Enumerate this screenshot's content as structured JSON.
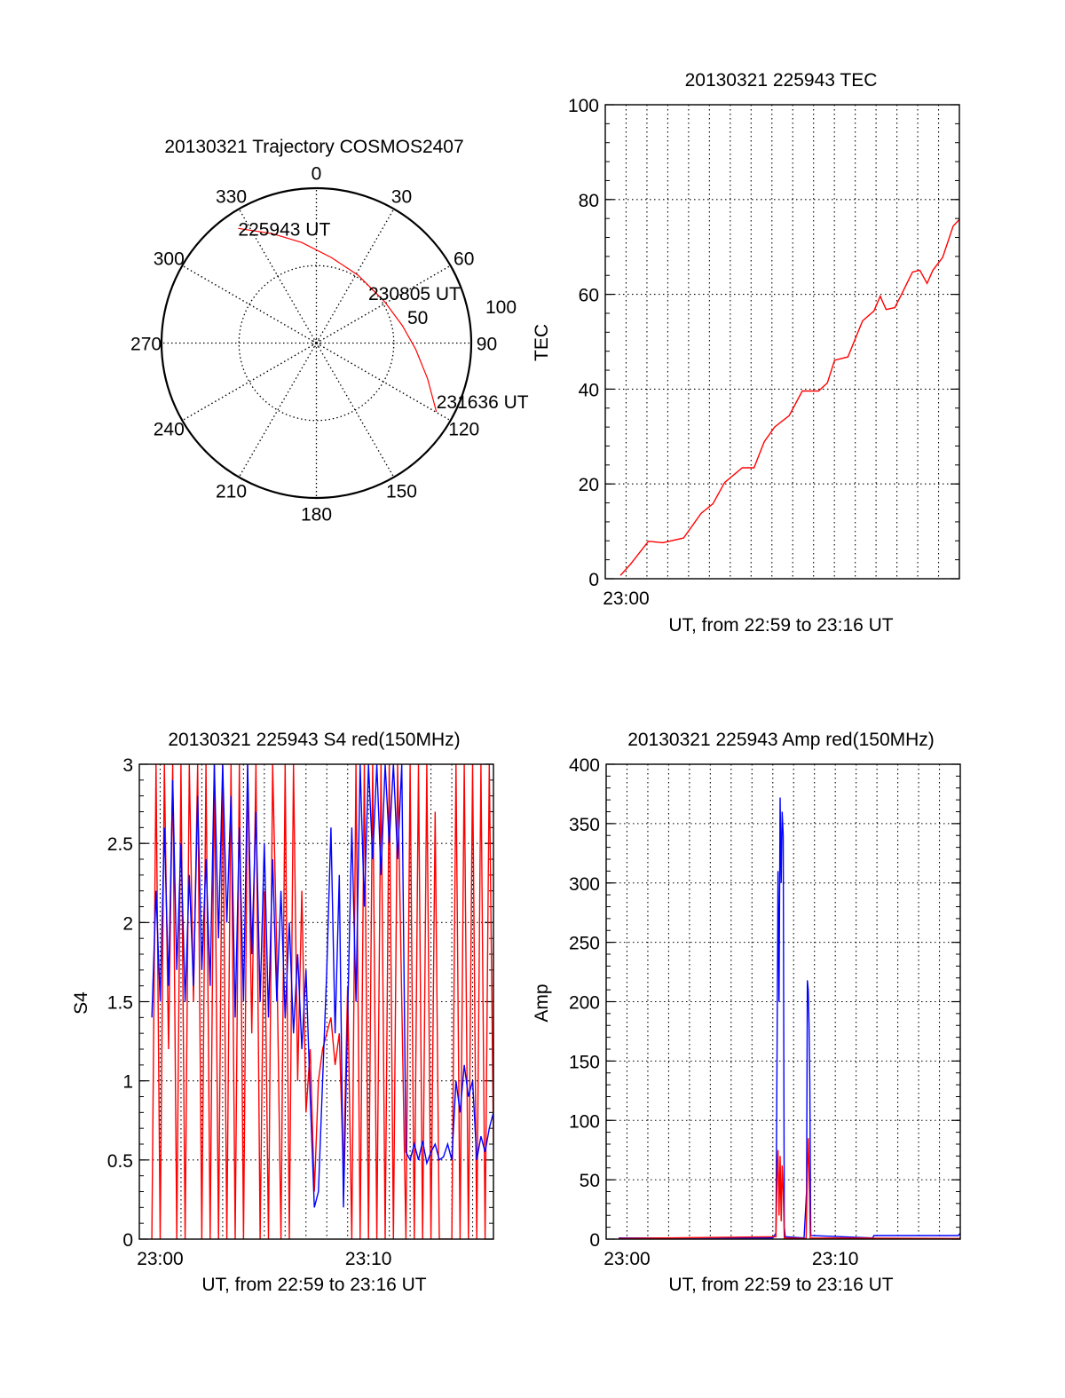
{
  "colors": {
    "red": "#ff0000",
    "blue": "#0000ff",
    "axis": "#000000"
  },
  "chart_data": [
    {
      "type": "polar",
      "title": "20130321 Trajectory COSMOS2407",
      "angle_labels": [
        "0",
        "30",
        "60",
        "90",
        "120",
        "150",
        "180",
        "210",
        "240",
        "270",
        "300",
        "330"
      ],
      "angles_deg": [
        0,
        30,
        60,
        90,
        120,
        150,
        180,
        210,
        240,
        270,
        300,
        330
      ],
      "radial_labels": [
        "50",
        "100"
      ],
      "radial_values": [
        50,
        100
      ],
      "rmax": 100,
      "trajectory": {
        "r": [
          89.6,
          76.2,
          65.6,
          56.1,
          51.4,
          51.5,
          56.6,
          64.2,
          75.4,
          89.3
        ],
        "az": [
          325.7,
          338.0,
          351.7,
          9.9,
          31.5,
          58.8,
          78.4,
          93.5,
          107.8,
          119.8
        ],
        "color": "red"
      },
      "annotations": [
        {
          "text": "225943 UT",
          "r": 89.6,
          "az": 325.7
        },
        {
          "text": "230805 UT",
          "r": 46.6,
          "az": 46.0
        },
        {
          "text": "231636 UT",
          "r": 89.3,
          "az": 119.8
        }
      ]
    },
    {
      "type": "line",
      "title": "20130321 225943 TEC",
      "xlabel": "UT, from 22:59 to 23:16 UT",
      "ylabel": "TEC",
      "x_unit": "minutes after 22:59",
      "xlim": [
        0,
        17
      ],
      "ylim": [
        0,
        100
      ],
      "y_ticks": [
        0,
        20,
        40,
        60,
        80,
        100
      ],
      "y_tick_labels": [
        "0",
        "20",
        "40",
        "60",
        "80",
        "100"
      ],
      "y_minor_step": 4,
      "x_ticks": [
        1
      ],
      "x_tick_labels": [
        "23:00"
      ],
      "grid": true,
      "series": [
        {
          "name": "TEC",
          "color": "red",
          "x": [
            0.73,
            1.22,
            2.07,
            2.77,
            3.76,
            4.6,
            5.17,
            5.73,
            6.58,
            7.14,
            7.63,
            8.13,
            8.83,
            9.46,
            10.24,
            10.66,
            11.01,
            11.65,
            12.35,
            12.9,
            13.2,
            13.48,
            13.9,
            14.18,
            14.75,
            15.1,
            15.45,
            15.73,
            16.2,
            16.7,
            17.0
          ],
          "y": [
            0.7,
            3.1,
            7.9,
            7.6,
            8.6,
            13.8,
            15.8,
            20.3,
            23.4,
            23.4,
            28.9,
            32.0,
            34.4,
            39.6,
            39.6,
            41.3,
            46.1,
            46.8,
            54.4,
            56.5,
            59.6,
            56.8,
            57.2,
            59.6,
            64.7,
            65.1,
            62.3,
            65.1,
            67.8,
            74.4,
            75.8
          ]
        }
      ]
    },
    {
      "type": "line",
      "title": "20130321 225943 S4 red(150MHz)",
      "xlabel": "UT, from 22:59 to 23:16 UT",
      "ylabel": "S4",
      "x_unit": "minutes after 22:59",
      "xlim": [
        0,
        17
      ],
      "ylim": [
        0,
        3
      ],
      "y_ticks": [
        0,
        0.5,
        1,
        1.5,
        2,
        2.5,
        3
      ],
      "y_tick_labels": [
        "0",
        "0.5",
        "1",
        "1.5",
        "2",
        "2.5",
        "3"
      ],
      "y_minor_step": 0.1,
      "x_ticks": [
        1,
        11
      ],
      "x_tick_labels": [
        "23:00",
        "23:10"
      ],
      "grid": true,
      "x_start": 0.6,
      "x_step": 0.2,
      "series": [
        {
          "name": "red",
          "color": "red",
          "values": [
            0,
            3,
            0,
            3,
            1.2,
            3,
            0,
            3,
            0,
            3,
            1.5,
            3,
            0,
            3,
            0,
            3,
            0,
            3,
            0,
            3,
            0,
            3,
            0,
            3,
            1.3,
            3,
            0,
            2.2,
            0,
            3,
            1.8,
            0,
            3,
            0,
            3,
            1.0,
            2.2,
            0.8,
            1.2,
            0.3,
            1.0,
            1.2,
            1.3,
            1.4,
            1.1,
            1.3,
            0.4,
            1.6,
            0,
            3,
            0,
            3,
            0,
            3,
            0,
            3,
            0,
            3,
            0,
            3,
            1.5,
            0,
            3,
            0,
            3,
            0,
            3,
            0,
            2.7,
            0,
            0,
            0,
            0,
            3,
            0,
            3,
            0,
            3,
            0,
            3,
            0,
            3,
            0.6
          ]
        },
        {
          "name": "blue",
          "color": "blue",
          "values": [
            1.4,
            2.2,
            1.5,
            2.6,
            1.6,
            2.9,
            1.7,
            2.5,
            1.5,
            2.3,
            1.6,
            2.8,
            1.7,
            2.4,
            1.6,
            3.0,
            1.9,
            3.0,
            2.0,
            2.8,
            1.4,
            2.6,
            1.5,
            3.0,
            1.8,
            2.7,
            1.5,
            2.5,
            1.4,
            2.4,
            1.5,
            2.2,
            1.4,
            2.0,
            1.3,
            1.8,
            1.2,
            1.7,
            0.9,
            0.2,
            0.3,
            1.0,
            1.7,
            2.6,
            1.3,
            2.3,
            0.2,
            1.4,
            2.6,
            1.5,
            3.0,
            2.1,
            3.0,
            2.4,
            3.0,
            2.3,
            3.0,
            2.5,
            3.0,
            2.4,
            3.0,
            0.55,
            0.5,
            0.6,
            0.5,
            0.62,
            0.48,
            0.55,
            0.6,
            0.5,
            0.52,
            0.6,
            0.5,
            1.0,
            0.8,
            1.1,
            0.9,
            1.0,
            0.5,
            0.65,
            0.55,
            0.7,
            0.8
          ]
        }
      ]
    },
    {
      "type": "line",
      "title": "20130321 225943 Amp red(150MHz)",
      "xlabel": "UT, from 22:59 to 23:16 UT",
      "ylabel": "Amp",
      "x_unit": "minutes after 22:59",
      "xlim": [
        0,
        17
      ],
      "ylim": [
        0,
        400
      ],
      "y_ticks": [
        0,
        50,
        100,
        150,
        200,
        250,
        300,
        350,
        400
      ],
      "y_tick_labels": [
        "0",
        "50",
        "100",
        "150",
        "200",
        "250",
        "300",
        "350",
        "400"
      ],
      "y_minor_step": 10,
      "x_ticks": [
        1,
        11
      ],
      "x_tick_labels": [
        "23:00",
        "23:10"
      ],
      "grid": true,
      "series": [
        {
          "name": "blue",
          "color": "blue",
          "points": [
            [
              0.6,
              1
            ],
            [
              8.0,
              1
            ],
            [
              8.15,
              5
            ],
            [
              8.2,
              150
            ],
            [
              8.25,
              310
            ],
            [
              8.3,
              200
            ],
            [
              8.35,
              372
            ],
            [
              8.4,
              300
            ],
            [
              8.45,
              360
            ],
            [
              8.5,
              340
            ],
            [
              8.55,
              10
            ],
            [
              8.6,
              2
            ],
            [
              9.5,
              1
            ],
            [
              9.62,
              40
            ],
            [
              9.66,
              218
            ],
            [
              9.7,
              210
            ],
            [
              9.74,
              180
            ],
            [
              9.78,
              130
            ],
            [
              9.82,
              3
            ],
            [
              12.8,
              1
            ],
            [
              12.85,
              3
            ],
            [
              16.9,
              3
            ],
            [
              17.0,
              5
            ]
          ]
        },
        {
          "name": "red",
          "color": "red",
          "points": [
            [
              0.6,
              0.5
            ],
            [
              8.15,
              2
            ],
            [
              8.2,
              50
            ],
            [
              8.25,
              75
            ],
            [
              8.3,
              20
            ],
            [
              8.35,
              70
            ],
            [
              8.4,
              15
            ],
            [
              8.45,
              62
            ],
            [
              8.5,
              40
            ],
            [
              8.55,
              1
            ],
            [
              9.6,
              0.5
            ],
            [
              9.64,
              40
            ],
            [
              9.7,
              85
            ],
            [
              9.74,
              60
            ],
            [
              9.8,
              1
            ],
            [
              17,
              0.5
            ]
          ]
        }
      ]
    }
  ]
}
